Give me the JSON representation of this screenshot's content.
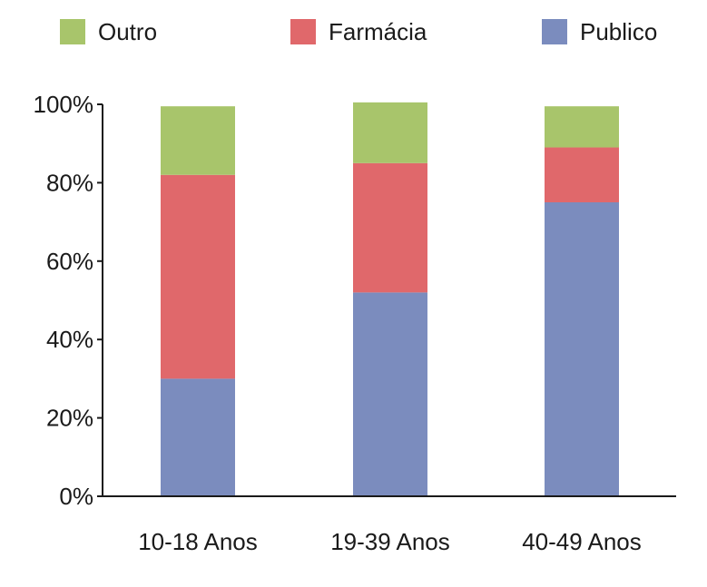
{
  "chart_data": {
    "type": "bar",
    "stacked": true,
    "percent": true,
    "categories": [
      "10-18 Anos",
      "19-39 Anos",
      "40-49 Anos"
    ],
    "series": [
      {
        "name": "Publico",
        "values": [
          30,
          52,
          75
        ],
        "color": "#7b8cbe"
      },
      {
        "name": "Farmácia",
        "values": [
          52,
          33,
          14
        ],
        "color": "#e0686b"
      },
      {
        "name": "Outro",
        "values": [
          17.5,
          15.5,
          10.5
        ],
        "color": "#a8c56b"
      }
    ],
    "legend_order": [
      "Outro",
      "Farmácia",
      "Publico"
    ],
    "legend_position": "top",
    "ylim": [
      0,
      100
    ],
    "yticks": [
      "0%",
      "20%",
      "40%",
      "60%",
      "80%",
      "100%"
    ],
    "ytick_values": [
      0,
      20,
      40,
      60,
      80,
      100
    ],
    "grid": false
  }
}
